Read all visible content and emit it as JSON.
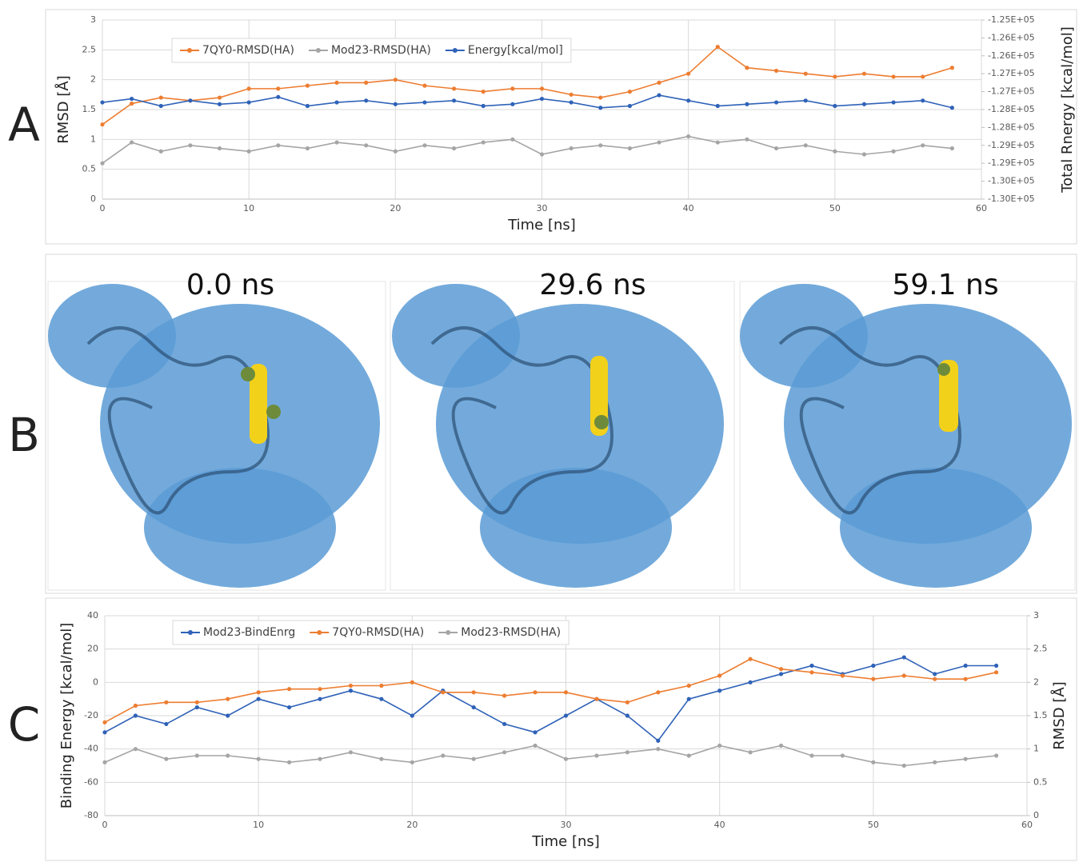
{
  "panel_labels": [
    "A",
    "B",
    "C"
  ],
  "snapshots": [
    "0.0 ns",
    "29.6 ns",
    "59.1 ns"
  ],
  "chart_data": [
    {
      "type": "line",
      "x_label": "Time [ns]",
      "y_label": "RMSD [Å]",
      "y2_label": "Total Rnergy [kcal/mol]",
      "xlim": [
        0,
        60
      ],
      "xticks": [
        0,
        10,
        20,
        30,
        40,
        50,
        60
      ],
      "ylim": [
        0,
        3
      ],
      "yticks": [
        0,
        0.5,
        1,
        1.5,
        2,
        2.5,
        3
      ],
      "y2lim": [
        -130000,
        -125000
      ],
      "y2ticks": [
        {
          "value": -130000,
          "label": "-1.30E+05"
        },
        {
          "value": -129500,
          "label": "-1.30E+05"
        },
        {
          "value": -129000,
          "label": "-1.29E+05"
        },
        {
          "value": -128500,
          "label": "-1.29E+05"
        },
        {
          "value": -128000,
          "label": "-1.28E+05"
        },
        {
          "value": -127500,
          "label": "-1.28E+05"
        },
        {
          "value": -127000,
          "label": "-1.27E+05"
        },
        {
          "value": -126500,
          "label": "-1.27E+05"
        },
        {
          "value": -126000,
          "label": "-1.26E+05"
        },
        {
          "value": -125500,
          "label": "-1.26E+05"
        },
        {
          "value": -125000,
          "label": "-1.25E+05"
        }
      ],
      "grid": true,
      "legend": "top-left",
      "x": [
        0,
        2,
        4,
        6,
        8,
        10,
        12,
        14,
        16,
        18,
        20,
        22,
        24,
        26,
        28,
        30,
        32,
        34,
        36,
        38,
        40,
        42,
        44,
        46,
        48,
        50,
        52,
        54,
        56,
        58
      ],
      "series": [
        {
          "name": "7QY0-RMSD(HA)",
          "color": "#ed7d31",
          "values": [
            1.25,
            1.6,
            1.7,
            1.65,
            1.7,
            1.85,
            1.85,
            1.9,
            1.95,
            1.95,
            2.0,
            1.9,
            1.85,
            1.8,
            1.85,
            1.85,
            1.75,
            1.7,
            1.8,
            1.95,
            2.1,
            2.55,
            2.2,
            2.15,
            2.1,
            2.05,
            2.1,
            2.05,
            2.05,
            2.2
          ]
        },
        {
          "name": "Mod23-RMSD(HA)",
          "color": "#a5a5a5",
          "values": [
            0.6,
            0.95,
            0.8,
            0.9,
            0.85,
            0.8,
            0.9,
            0.85,
            0.95,
            0.9,
            0.8,
            0.9,
            0.85,
            0.95,
            1.0,
            0.75,
            0.85,
            0.9,
            0.85,
            0.95,
            1.05,
            0.95,
            1.0,
            0.85,
            0.9,
            0.8,
            0.75,
            0.8,
            0.9,
            0.85
          ]
        },
        {
          "name": "Energy[kcal/mol]",
          "color": "#2f62b8",
          "axis": "y2",
          "values": [
            -127300,
            -127200,
            -127400,
            -127250,
            -127350,
            -127300,
            -127150,
            -127400,
            -127300,
            -127250,
            -127350,
            -127300,
            -127250,
            -127400,
            -127350,
            -127200,
            -127300,
            -127450,
            -127400,
            -127100,
            -127250,
            -127400,
            -127350,
            -127300,
            -127250,
            -127400,
            -127350,
            -127300,
            -127250,
            -127450
          ]
        }
      ]
    },
    {
      "type": "line",
      "x_label": "Time [ns]",
      "y_label": "Binding Energy [kcal/mol]",
      "y2_label": "RMSD [Å]",
      "xlim": [
        0,
        60
      ],
      "xticks": [
        0,
        10,
        20,
        30,
        40,
        50,
        60
      ],
      "ylim": [
        -80,
        40
      ],
      "yticks": [
        -80,
        -60,
        -40,
        -20,
        0,
        20,
        40
      ],
      "y2lim": [
        0,
        3
      ],
      "y2ticks": [
        0,
        0.5,
        1,
        1.5,
        2,
        2.5,
        3
      ],
      "grid": true,
      "legend": "top-left",
      "x": [
        0,
        2,
        4,
        6,
        8,
        10,
        12,
        14,
        16,
        18,
        20,
        22,
        24,
        26,
        28,
        30,
        32,
        34,
        36,
        38,
        40,
        42,
        44,
        46,
        48,
        50,
        52,
        54,
        56,
        58
      ],
      "series": [
        {
          "name": "Mod23-BindEnrg",
          "color": "#2f62b8",
          "values": [
            -30,
            -20,
            -25,
            -15,
            -20,
            -10,
            -15,
            -10,
            -5,
            -10,
            -20,
            -5,
            -15,
            -25,
            -30,
            -20,
            -10,
            -20,
            -35,
            -10,
            -5,
            0,
            5,
            10,
            5,
            10,
            15,
            5,
            10,
            10
          ]
        },
        {
          "name": "7QY0-RMSD(HA)",
          "color": "#ed7d31",
          "axis": "y2",
          "values": [
            1.4,
            1.65,
            1.7,
            1.7,
            1.75,
            1.85,
            1.9,
            1.9,
            1.95,
            1.95,
            2.0,
            1.85,
            1.85,
            1.8,
            1.85,
            1.85,
            1.75,
            1.7,
            1.85,
            1.95,
            2.1,
            2.35,
            2.2,
            2.15,
            2.1,
            2.05,
            2.1,
            2.05,
            2.05,
            2.15
          ]
        },
        {
          "name": "Mod23-RMSD(HA)",
          "color": "#a5a5a5",
          "axis": "y2",
          "values": [
            0.8,
            1.0,
            0.85,
            0.9,
            0.9,
            0.85,
            0.8,
            0.85,
            0.95,
            0.85,
            0.8,
            0.9,
            0.85,
            0.95,
            1.05,
            0.85,
            0.9,
            0.95,
            1.0,
            0.9,
            1.05,
            0.95,
            1.05,
            0.9,
            0.9,
            0.8,
            0.75,
            0.8,
            0.85,
            0.9
          ]
        }
      ]
    }
  ]
}
